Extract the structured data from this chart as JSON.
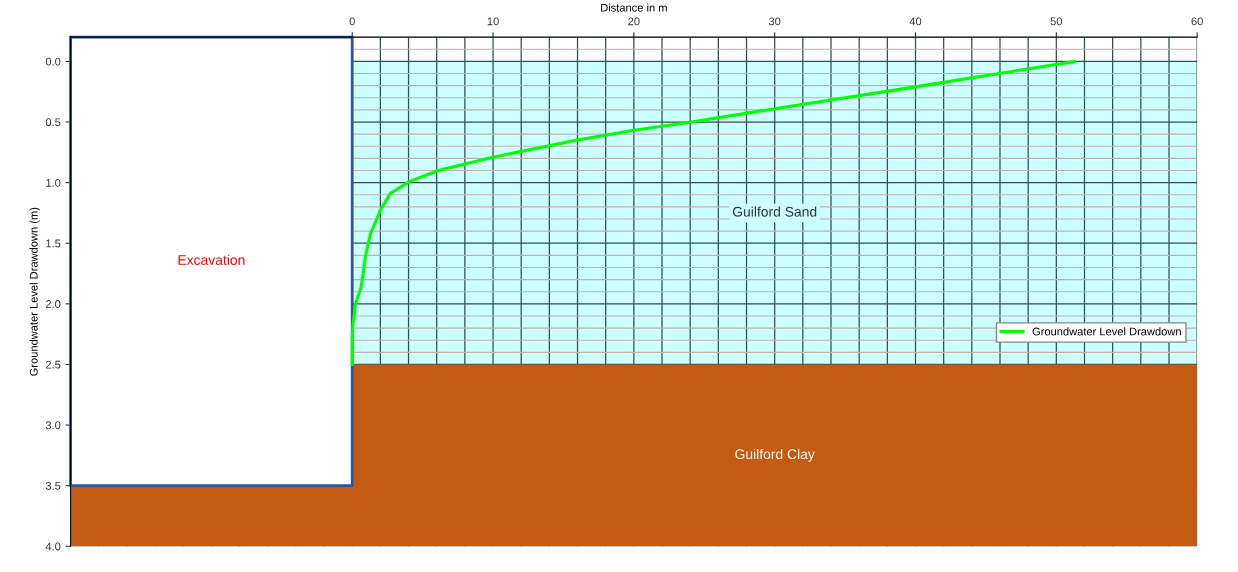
{
  "chart_data": {
    "type": "line",
    "xlabel": "Distance in m",
    "ylabel": "Groundwater Level Drawdown (m)",
    "series": [
      {
        "name": "Groundwater Level Drawdown",
        "color": "#00ff00",
        "x": [
          51.3,
          40,
          30,
          24.1,
          19.9,
          15.9,
          10,
          6.1,
          4.1,
          2.7,
          2.0,
          1.3,
          0.94,
          0.64,
          0.24,
          0.05,
          0,
          0
        ],
        "values": [
          0,
          0.21,
          0.39,
          0.5,
          0.57,
          0.65,
          0.79,
          0.9,
          0.99,
          1.09,
          1.23,
          1.42,
          1.61,
          1.86,
          2.0,
          2.17,
          2.3,
          2.5
        ]
      }
    ],
    "xlim": [
      -20,
      60
    ],
    "xticks": [
      0,
      10,
      20,
      30,
      40,
      50,
      60
    ],
    "ylim": [
      4.0,
      -0.2
    ],
    "yticks": [
      {
        "value": 0,
        "label": "0.0"
      },
      {
        "value": 0.5,
        "label": "0.5"
      },
      {
        "value": 1,
        "label": "1.0"
      },
      {
        "value": 1.5,
        "label": "1.5"
      },
      {
        "value": 2,
        "label": "2.0"
      },
      {
        "value": 2.5,
        "label": "2.5"
      },
      {
        "value": 3,
        "label": "3.0"
      },
      {
        "value": 3.5,
        "label": "3.5"
      },
      {
        "value": 4,
        "label": "4.0"
      }
    ],
    "bands": [
      {
        "axis": "y",
        "from": 0,
        "to": 2.5,
        "color": "#ccffff",
        "label": "Guilford Sand"
      },
      {
        "axis": "y",
        "from": 2.5,
        "to": 4.0,
        "color": "#c55a11",
        "label": "Guilford Clay"
      }
    ],
    "annotations": [
      "Excavation"
    ],
    "grid": true,
    "legend": "right",
    "marker": "none",
    "line_style": "solid"
  }
}
